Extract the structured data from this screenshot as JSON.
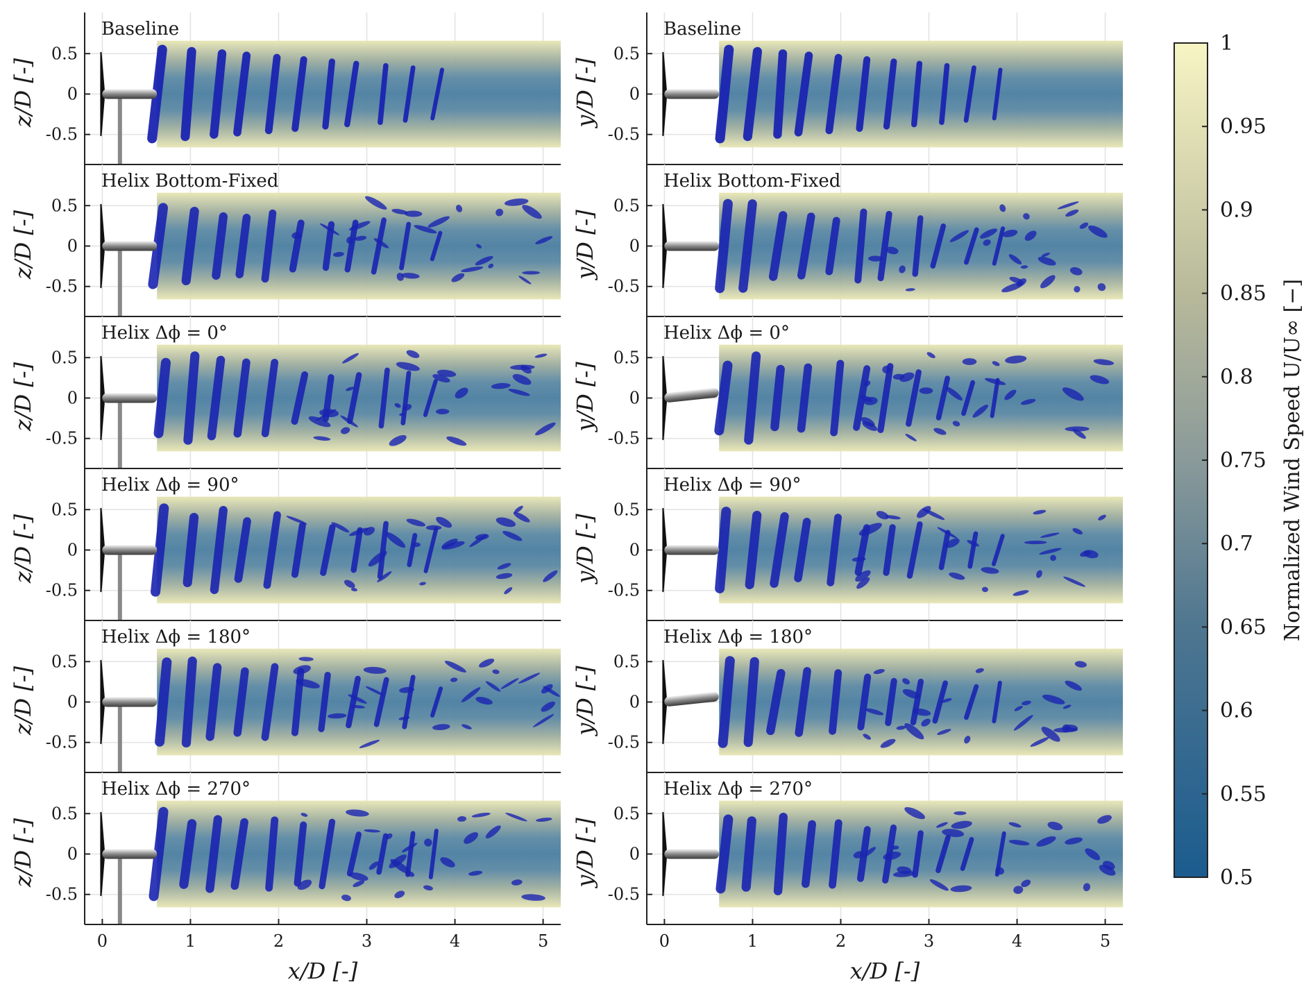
{
  "figure": {
    "panel_titles": [
      "Baseline",
      "Helix Bottom-Fixed",
      "Helix Δϕ = 0°",
      "Helix Δϕ = 90°",
      "Helix Δϕ = 180°",
      "Helix Δϕ = 270°"
    ],
    "left_ylabel": "z/D [-]",
    "right_ylabel": "y/D [-]",
    "xlabel": "x/D [-]",
    "y_ticks": [
      "0.5",
      "0",
      "-0.5"
    ],
    "x_ticks": [
      "0",
      "1",
      "2",
      "3",
      "4",
      "5"
    ],
    "colorbar": {
      "label": "Normalized Wind Speed U/U∞ [−]",
      "ticks": [
        "1",
        "0.95",
        "0.9",
        "0.85",
        "0.8",
        "0.75",
        "0.7",
        "0.65",
        "0.6",
        "0.55",
        "0.5"
      ],
      "color_low": "#1b5c8f",
      "color_mid": "#8a9a9a",
      "color_high": "#f7f5c4"
    },
    "vortex_color": "#1a24b0",
    "wake_color": "#4f7fa0"
  }
}
